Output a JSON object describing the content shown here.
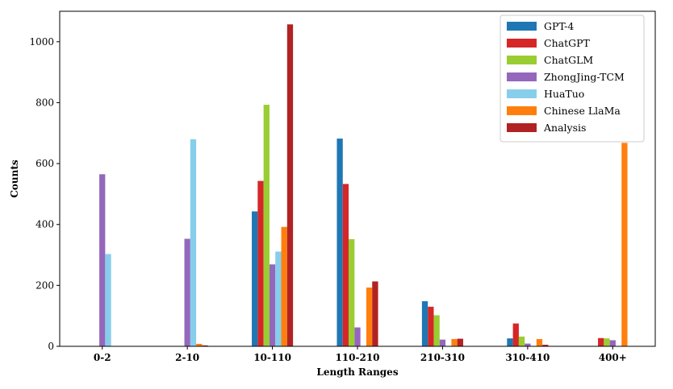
{
  "chart_data": {
    "type": "bar",
    "xlabel": "Length Ranges",
    "ylabel": "Counts",
    "ylim": [
      0,
      1100
    ],
    "yticks": [
      "0",
      "200",
      "400",
      "600",
      "800",
      "1000"
    ],
    "categories": [
      "0-2",
      "2-10",
      "10-110",
      "110-210",
      "210-310",
      "310-410",
      "400+"
    ],
    "legend_position": "top-right",
    "grid": false,
    "series": [
      {
        "name": "GPT-4",
        "color": "#1f77b4",
        "values": [
          0,
          0,
          443,
          682,
          148,
          26,
          0
        ]
      },
      {
        "name": "ChatGPT",
        "color": "#d62728",
        "values": [
          0,
          0,
          543,
          533,
          130,
          75,
          27
        ]
      },
      {
        "name": "ChatGLM",
        "color": "#9acd32",
        "values": [
          0,
          0,
          793,
          352,
          102,
          32,
          26
        ]
      },
      {
        "name": "ZhongJing-TCM",
        "color": "#9467bd",
        "values": [
          565,
          353,
          269,
          62,
          22,
          9,
          20
        ]
      },
      {
        "name": "HuaTuo",
        "color": "#87ceeb",
        "values": [
          303,
          680,
          311,
          0,
          0,
          0,
          0
        ]
      },
      {
        "name": "Chinese LlaMa",
        "color": "#ff7f0e",
        "values": [
          0,
          8,
          392,
          193,
          24,
          24,
          668
        ]
      },
      {
        "name": "Analysis",
        "color": "#b22222",
        "values": [
          0,
          3,
          1057,
          213,
          25,
          5,
          0
        ]
      }
    ]
  }
}
